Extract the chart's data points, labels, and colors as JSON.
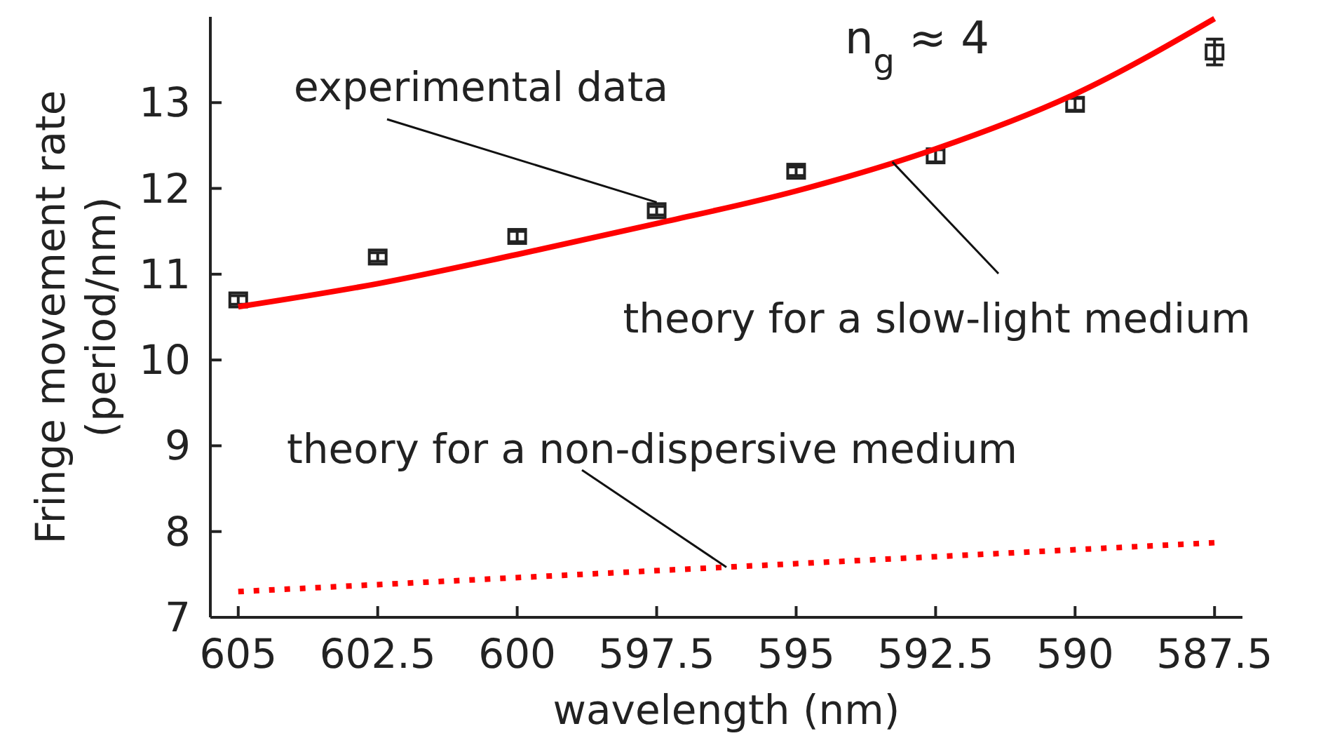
{
  "chart_data": {
    "type": "line",
    "xlabel": "wavelength (nm)",
    "ylabel": "Fringe movement rate\n(period/nm)",
    "xlim": [
      605.5,
      587
    ],
    "ylim": [
      7,
      14
    ],
    "xticks": [
      605,
      602.5,
      600,
      597.5,
      595,
      592.5,
      590,
      587.5
    ],
    "yticks": [
      7,
      8,
      9,
      10,
      11,
      12,
      13
    ],
    "grid": false,
    "series": [
      {
        "name": "experimental data",
        "type": "scatter",
        "marker": "square",
        "color": "#222222",
        "x": [
          605,
          602.5,
          600,
          597.5,
          595,
          592.5,
          590,
          587.5
        ],
        "values": [
          10.7,
          11.2,
          11.44,
          11.74,
          12.2,
          12.38,
          12.98,
          13.59
        ],
        "errors": [
          0.05,
          0.05,
          0.06,
          0.05,
          0.05,
          0.07,
          0.07,
          0.15
        ]
      },
      {
        "name": "theory for a slow-light medium",
        "line_style": "solid",
        "color": "#ff0000",
        "x": [
          605,
          602.5,
          600,
          597.5,
          595,
          592.5,
          590,
          587.5
        ],
        "values": [
          10.62,
          10.89,
          11.23,
          11.59,
          11.97,
          12.46,
          13.1,
          13.98
        ]
      },
      {
        "name": "theory for a non-dispersive medium",
        "line_style": "dotted",
        "color": "#ff0000",
        "x": [
          605,
          587.5
        ],
        "values": [
          7.3,
          7.87
        ]
      }
    ],
    "annotations": [
      "n$_{g}$ ≈ 4"
    ]
  }
}
